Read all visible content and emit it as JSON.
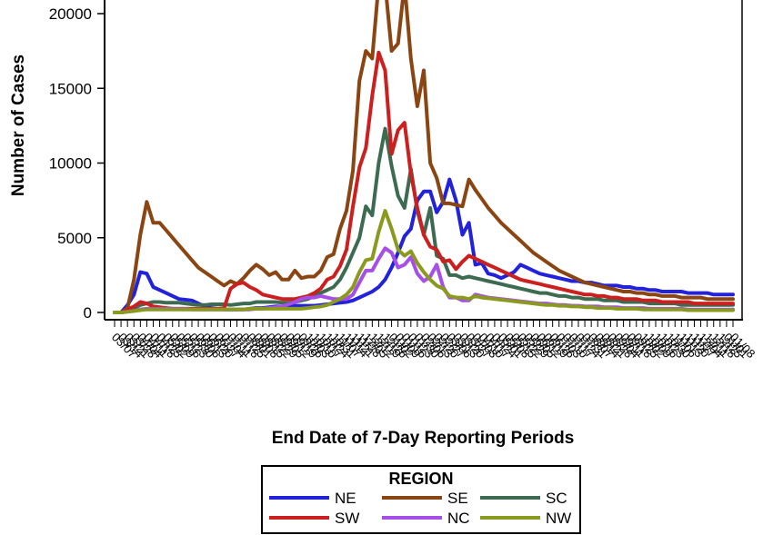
{
  "chart_data": {
    "type": "line",
    "title": "",
    "xlabel": "End Date of 7-Day Reporting Periods",
    "ylabel": "Number of Cases",
    "ylim": [
      0,
      20000
    ],
    "yticks": [
      "0",
      "5000",
      "10000",
      "15000",
      "20000"
    ],
    "x_ticks": [
      "03/07",
      "03/14",
      "03/21",
      "03/28",
      "04/04",
      "04/11",
      "04/18",
      "04/25",
      "05/02",
      "05/09",
      "05/16",
      "05/23",
      "05/30",
      "06/06",
      "06/13",
      "06/20",
      "06/27",
      "07/04",
      "07/11",
      "07/18",
      "07/25",
      "08/01",
      "08/08",
      "08/15",
      "08/22",
      "08/29",
      "09/05",
      "09/12",
      "09/19",
      "09/26",
      "10/03",
      "10/10",
      "10/17",
      "10/24",
      "10/31",
      "11/07",
      "11/14",
      "11/21",
      "11/28",
      "12/05",
      "12/12",
      "12/19",
      "12/26",
      "01/02",
      "01/09",
      "01/16",
      "01/23",
      "01/30",
      "02/06",
      "02/13",
      "02/20",
      "02/27",
      "03/06",
      "03/13",
      "03/20",
      "03/27",
      "04/03",
      "04/10",
      "04/17",
      "04/24",
      "05/01",
      "05/08",
      "05/15",
      "05/22",
      "05/29",
      "06/05",
      "06/12",
      "06/19",
      "06/26",
      "07/03",
      "07/10",
      "07/17",
      "07/24",
      "07/31",
      "08/07",
      "08/14",
      "08/21",
      "08/28",
      "09/04",
      "09/11",
      "09/18",
      "09/25",
      "10/02",
      "10/09",
      "10/16",
      "10/23",
      "10/30",
      "11/06",
      "11/13",
      "11/20",
      "11/27",
      "12/04",
      "12/11",
      "12/18",
      "12/25",
      "01/01",
      "01/08"
    ],
    "legend": {
      "title": "REGION",
      "position": "bottom"
    },
    "series": [
      {
        "name": "NE",
        "color": "#2222dd",
        "values": [
          0,
          0,
          500,
          1200,
          2700,
          2600,
          1700,
          1500,
          1300,
          1100,
          900,
          850,
          800,
          600,
          400,
          300,
          250,
          200,
          200,
          200,
          200,
          250,
          300,
          300,
          350,
          400,
          400,
          450,
          450,
          450,
          450,
          450,
          500,
          550,
          600,
          650,
          700,
          800,
          1000,
          1200,
          1400,
          1700,
          2200,
          3000,
          4000,
          5100,
          5600,
          7500,
          8100,
          8100,
          6700,
          7400,
          8900,
          7500,
          5200,
          6000,
          3200,
          3300,
          2600,
          2500,
          2300,
          2500,
          2700,
          3200,
          3000,
          2800,
          2600,
          2500,
          2400,
          2300,
          2200,
          2100,
          2100,
          2000,
          2000,
          1900,
          1800,
          1800,
          1800,
          1700,
          1700,
          1600,
          1600,
          1500,
          1500,
          1400,
          1400,
          1400,
          1400,
          1300,
          1300,
          1300,
          1300,
          1200,
          1200,
          1200,
          1200
        ]
      },
      {
        "name": "SE",
        "color": "#8b4513",
        "values": [
          0,
          0,
          300,
          2200,
          5200,
          7400,
          6000,
          6000,
          5500,
          5000,
          4500,
          4000,
          3500,
          3000,
          2700,
          2400,
          2100,
          1800,
          2100,
          1900,
          2300,
          2800,
          3200,
          2900,
          2500,
          2700,
          2200,
          2200,
          2800,
          2300,
          2400,
          2400,
          2800,
          3700,
          3900,
          5600,
          6800,
          9500,
          15500,
          17500,
          17000,
          22000,
          22000,
          17500,
          18000,
          22000,
          17000,
          13800,
          16200,
          10000,
          9000,
          7300,
          7300,
          7200,
          7100,
          8900,
          8200,
          7600,
          7000,
          6500,
          6000,
          5600,
          5200,
          4800,
          4400,
          4000,
          3700,
          3400,
          3100,
          2800,
          2600,
          2400,
          2200,
          2000,
          1900,
          1800,
          1700,
          1600,
          1500,
          1400,
          1400,
          1300,
          1300,
          1200,
          1200,
          1100,
          1100,
          1100,
          1000,
          1000,
          1000,
          1000,
          900,
          900,
          900,
          900,
          900
        ]
      },
      {
        "name": "SC",
        "color": "#3d6b52",
        "values": [
          0,
          0,
          100,
          300,
          500,
          600,
          700,
          700,
          650,
          650,
          650,
          600,
          550,
          500,
          500,
          550,
          550,
          550,
          500,
          550,
          600,
          600,
          700,
          700,
          700,
          700,
          650,
          650,
          700,
          800,
          900,
          1100,
          1300,
          1500,
          1700,
          2200,
          3000,
          4000,
          5000,
          7100,
          6500,
          10000,
          12300,
          9800,
          7800,
          7000,
          9600,
          6800,
          5200,
          7000,
          3800,
          3600,
          2500,
          2500,
          2300,
          2400,
          2300,
          2200,
          2100,
          2000,
          1900,
          1800,
          1700,
          1600,
          1500,
          1400,
          1300,
          1300,
          1200,
          1100,
          1100,
          1000,
          1000,
          900,
          900,
          900,
          800,
          800,
          800,
          700,
          700,
          700,
          700,
          600,
          600,
          600,
          600,
          600,
          500,
          500,
          500,
          500,
          500,
          500,
          500,
          500,
          500
        ]
      },
      {
        "name": "SW",
        "color": "#cc1f1f",
        "values": [
          0,
          0,
          200,
          400,
          700,
          600,
          400,
          350,
          300,
          250,
          250,
          250,
          250,
          250,
          250,
          250,
          250,
          300,
          1600,
          1900,
          2000,
          1700,
          1500,
          1200,
          1100,
          1000,
          900,
          900,
          900,
          1000,
          1100,
          1300,
          1600,
          2200,
          2400,
          3100,
          4200,
          7100,
          9700,
          11000,
          14500,
          17400,
          16200,
          10600,
          12200,
          12700,
          9300,
          7000,
          5200,
          4400,
          4200,
          3400,
          3500,
          2900,
          3400,
          3800,
          3600,
          3400,
          3200,
          3000,
          2800,
          2600,
          2400,
          2200,
          2100,
          2000,
          1900,
          1800,
          1700,
          1600,
          1500,
          1400,
          1300,
          1200,
          1200,
          1100,
          1100,
          1000,
          1000,
          900,
          900,
          900,
          800,
          800,
          800,
          700,
          700,
          700,
          700,
          700,
          600,
          600,
          600,
          600,
          600,
          600,
          600
        ]
      },
      {
        "name": "NC",
        "color": "#a64ee8",
        "values": [
          0,
          0,
          50,
          100,
          200,
          250,
          250,
          250,
          250,
          250,
          250,
          250,
          200,
          200,
          200,
          200,
          200,
          200,
          200,
          200,
          200,
          200,
          250,
          250,
          300,
          350,
          400,
          550,
          700,
          900,
          1000,
          1000,
          1100,
          1000,
          900,
          900,
          900,
          1200,
          2000,
          2800,
          2800,
          3600,
          4300,
          4000,
          3000,
          3200,
          3700,
          2600,
          2100,
          2400,
          3200,
          1700,
          1000,
          1000,
          800,
          800,
          1200,
          1100,
          1000,
          950,
          900,
          850,
          800,
          750,
          700,
          650,
          600,
          600,
          550,
          500,
          500,
          450,
          450,
          400,
          400,
          400,
          350,
          350,
          350,
          300,
          300,
          300,
          300,
          250,
          250,
          250,
          250,
          250,
          250,
          200,
          200,
          200,
          200,
          200,
          200,
          200,
          200
        ]
      },
      {
        "name": "NW",
        "color": "#8a9a1e",
        "values": [
          0,
          0,
          50,
          100,
          150,
          200,
          200,
          200,
          200,
          200,
          200,
          200,
          200,
          200,
          200,
          200,
          200,
          200,
          200,
          200,
          200,
          250,
          250,
          250,
          250,
          250,
          250,
          250,
          250,
          250,
          300,
          350,
          400,
          500,
          700,
          900,
          1200,
          1700,
          2700,
          3500,
          3600,
          5400,
          6800,
          5600,
          4200,
          3800,
          4100,
          3300,
          2700,
          2200,
          1800,
          1600,
          1100,
          1000,
          1000,
          900,
          1100,
          1000,
          950,
          900,
          850,
          800,
          750,
          700,
          650,
          600,
          550,
          500,
          500,
          450,
          450,
          400,
          400,
          350,
          350,
          300,
          300,
          300,
          250,
          250,
          250,
          250,
          200,
          200,
          200,
          200,
          200,
          200,
          200,
          150,
          150,
          150,
          150,
          150,
          150,
          150,
          150
        ]
      }
    ]
  }
}
